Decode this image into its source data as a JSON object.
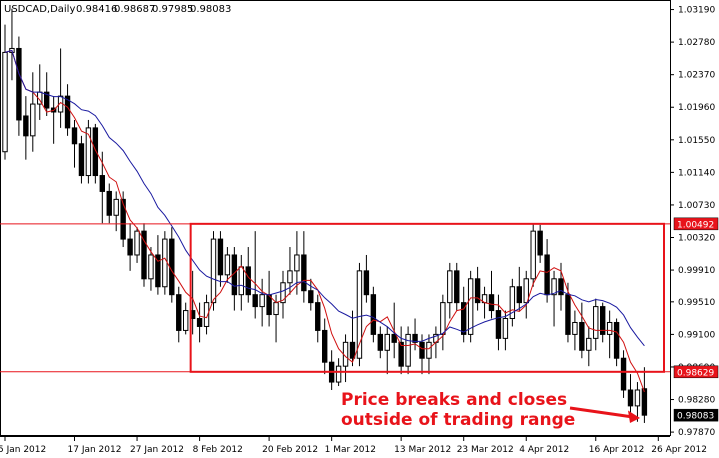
{
  "header": {
    "symbol": "USDCAD,Daily",
    "open": "0.98416",
    "high": "0.98687",
    "low": "0.97985",
    "close": "0.98083"
  },
  "annotation": {
    "line1": "Price breaks and closes",
    "line2": "outside of trading range"
  },
  "price_labels": {
    "range_top": "1.00492",
    "range_bottom": "0.98629",
    "current": "0.98083"
  },
  "colors": {
    "candle": "#000000",
    "background": "#ffffff",
    "ma_fast": "#d01010",
    "ma_slow": "#1a1aa0",
    "range": "#e8131a",
    "annotation": "#e8131a"
  },
  "chart_data": {
    "type": "candlestick",
    "title": "USDCAD,Daily",
    "ylim": [
      0.97846,
      1.03285
    ],
    "y_ticks": [
      "1.03190",
      "1.02780",
      "1.02370",
      "1.01960",
      "1.01550",
      "1.01140",
      "1.00730",
      "1.00320",
      "0.99910",
      "0.99510",
      "0.99100",
      "0.98690",
      "0.98280",
      "0.97870"
    ],
    "x_ticks": [
      "5 Jan 2012",
      "17 Jan 2012",
      "27 Jan 2012",
      "8 Feb 2012",
      "20 Feb 2012",
      "1 Mar 2012",
      "13 Mar 2012",
      "23 Mar 2012",
      "4 Apr 2012",
      "16 Apr 2012",
      "26 Apr 2012"
    ],
    "x_tick_index": [
      0,
      10,
      19,
      28,
      38,
      47,
      57,
      66,
      75,
      85,
      94
    ],
    "trading_range": {
      "high": 1.00492,
      "low": 0.98629,
      "start_index": 27,
      "end_index": 99
    },
    "candles": [
      [
        1.014,
        1.03,
        1.013,
        1.0265
      ],
      [
        1.0265,
        1.032,
        1.023,
        1.027
      ],
      [
        1.027,
        1.0285,
        1.016,
        1.018
      ],
      [
        1.0185,
        1.021,
        1.013,
        1.016
      ],
      [
        1.016,
        1.024,
        1.014,
        1.02
      ],
      [
        1.02,
        1.025,
        1.018,
        1.0215
      ],
      [
        1.0215,
        1.024,
        1.0185,
        1.0195
      ],
      [
        1.0195,
        1.021,
        1.015,
        1.019
      ],
      [
        1.019,
        1.027,
        1.017,
        1.021
      ],
      [
        1.021,
        1.0225,
        1.016,
        1.017
      ],
      [
        1.017,
        1.018,
        1.012,
        1.015
      ],
      [
        1.015,
        1.016,
        1.01,
        1.011
      ],
      [
        1.011,
        1.018,
        1.01,
        1.017
      ],
      [
        1.017,
        1.0175,
        1.01,
        1.011
      ],
      [
        1.011,
        1.014,
        1.005,
        1.009
      ],
      [
        1.009,
        1.01,
        1.005,
        1.006
      ],
      [
        1.006,
        1.009,
        1.004,
        1.008
      ],
      [
        1.008,
        1.009,
        1.002,
        1.003
      ],
      [
        1.003,
        1.005,
        0.999,
        1.001
      ],
      [
        1.001,
        1.0045,
        1.0,
        1.004
      ],
      [
        1.004,
        1.005,
        0.997,
        0.998
      ],
      [
        0.998,
        1.002,
        0.9965,
        1.001
      ],
      [
        1.001,
        1.0035,
        0.996,
        0.997
      ],
      [
        0.997,
        1.004,
        0.996,
        1.003
      ],
      [
        1.003,
        1.0045,
        0.995,
        0.996
      ],
      [
        0.996,
        0.997,
        0.99,
        0.9915
      ],
      [
        0.9915,
        0.995,
        0.991,
        0.994
      ],
      [
        0.994,
        0.999,
        0.991,
        0.993
      ],
      [
        0.993,
        0.995,
        0.99,
        0.992
      ],
      [
        0.992,
        0.996,
        0.991,
        0.995
      ],
      [
        0.995,
        1.004,
        0.994,
        1.003
      ],
      [
        1.003,
        1.004,
        0.997,
        0.9985
      ],
      [
        0.9985,
        1.002,
        0.9975,
        1.001
      ],
      [
        1.001,
        1.002,
        0.994,
        0.996
      ],
      [
        0.996,
        1.001,
        0.994,
        0.9995
      ],
      [
        0.9995,
        1.002,
        0.995,
        0.996
      ],
      [
        0.996,
        1.004,
        0.993,
        0.9945
      ],
      [
        0.9945,
        0.998,
        0.992,
        0.996
      ],
      [
        0.996,
        0.999,
        0.992,
        0.9935
      ],
      [
        0.9935,
        0.996,
        0.99,
        0.995
      ],
      [
        0.995,
        0.999,
        0.993,
        0.9975
      ],
      [
        0.9975,
        1.002,
        0.996,
        0.999
      ],
      [
        0.999,
        1.004,
        0.996,
        1.001
      ],
      [
        1.001,
        1.004,
        0.995,
        0.9965
      ],
      [
        0.9965,
        0.998,
        0.994,
        0.995
      ],
      [
        0.995,
        0.996,
        0.99,
        0.9915
      ],
      [
        0.9915,
        0.993,
        0.986,
        0.9875
      ],
      [
        0.9875,
        0.989,
        0.984,
        0.985
      ],
      [
        0.985,
        0.988,
        0.9845,
        0.987
      ],
      [
        0.987,
        0.991,
        0.985,
        0.99
      ],
      [
        0.99,
        0.994,
        0.987,
        0.988
      ],
      [
        0.988,
        1.0,
        0.987,
        0.999
      ],
      [
        0.999,
        1.001,
        0.995,
        0.996
      ],
      [
        0.996,
        0.997,
        0.99,
        0.991
      ],
      [
        0.991,
        0.992,
        0.988,
        0.989
      ],
      [
        0.989,
        0.992,
        0.986,
        0.991
      ],
      [
        0.991,
        0.995,
        0.988,
        0.99
      ],
      [
        0.99,
        0.992,
        0.986,
        0.987
      ],
      [
        0.987,
        0.992,
        0.986,
        0.991
      ],
      [
        0.991,
        0.993,
        0.989,
        0.99
      ],
      [
        0.99,
        0.991,
        0.986,
        0.988
      ],
      [
        0.988,
        0.991,
        0.986,
        0.99
      ],
      [
        0.99,
        0.992,
        0.988,
        0.991
      ],
      [
        0.991,
        0.996,
        0.989,
        0.995
      ],
      [
        0.995,
        1.0,
        0.993,
        0.999
      ],
      [
        0.999,
        1.0,
        0.994,
        0.995
      ],
      [
        0.995,
        0.997,
        0.99,
        0.991
      ],
      [
        0.991,
        0.999,
        0.99,
        0.998
      ],
      [
        0.998,
        0.9995,
        0.994,
        0.995
      ],
      [
        0.995,
        0.997,
        0.993,
        0.996
      ],
      [
        0.996,
        0.999,
        0.993,
        0.994
      ],
      [
        0.994,
        0.996,
        0.989,
        0.9905
      ],
      [
        0.9905,
        0.994,
        0.989,
        0.993
      ],
      [
        0.993,
        0.998,
        0.992,
        0.997
      ],
      [
        0.997,
        0.9995,
        0.994,
        0.995
      ],
      [
        0.995,
        0.999,
        0.993,
        0.998
      ],
      [
        0.998,
        1.005,
        0.997,
        1.004
      ],
      [
        1.004,
        1.0048,
        1.0,
        1.001
      ],
      [
        1.001,
        1.003,
        0.995,
        0.996
      ],
      [
        0.996,
        0.999,
        0.992,
        0.998
      ],
      [
        0.998,
        1.0,
        0.994,
        0.996
      ],
      [
        0.996,
        0.9975,
        0.99,
        0.991
      ],
      [
        0.991,
        0.994,
        0.989,
        0.9925
      ],
      [
        0.9925,
        0.995,
        0.988,
        0.989
      ],
      [
        0.989,
        0.992,
        0.987,
        0.9905
      ],
      [
        0.9905,
        0.9955,
        0.989,
        0.9945
      ],
      [
        0.9945,
        0.995,
        0.99,
        0.991
      ],
      [
        0.991,
        0.994,
        0.988,
        0.9925
      ],
      [
        0.9925,
        0.993,
        0.987,
        0.988
      ],
      [
        0.988,
        0.989,
        0.983,
        0.984
      ],
      [
        0.984,
        0.986,
        0.981,
        0.982
      ],
      [
        0.982,
        0.985,
        0.98,
        0.984
      ],
      [
        0.98416,
        0.98687,
        0.97985,
        0.98083
      ]
    ]
  }
}
